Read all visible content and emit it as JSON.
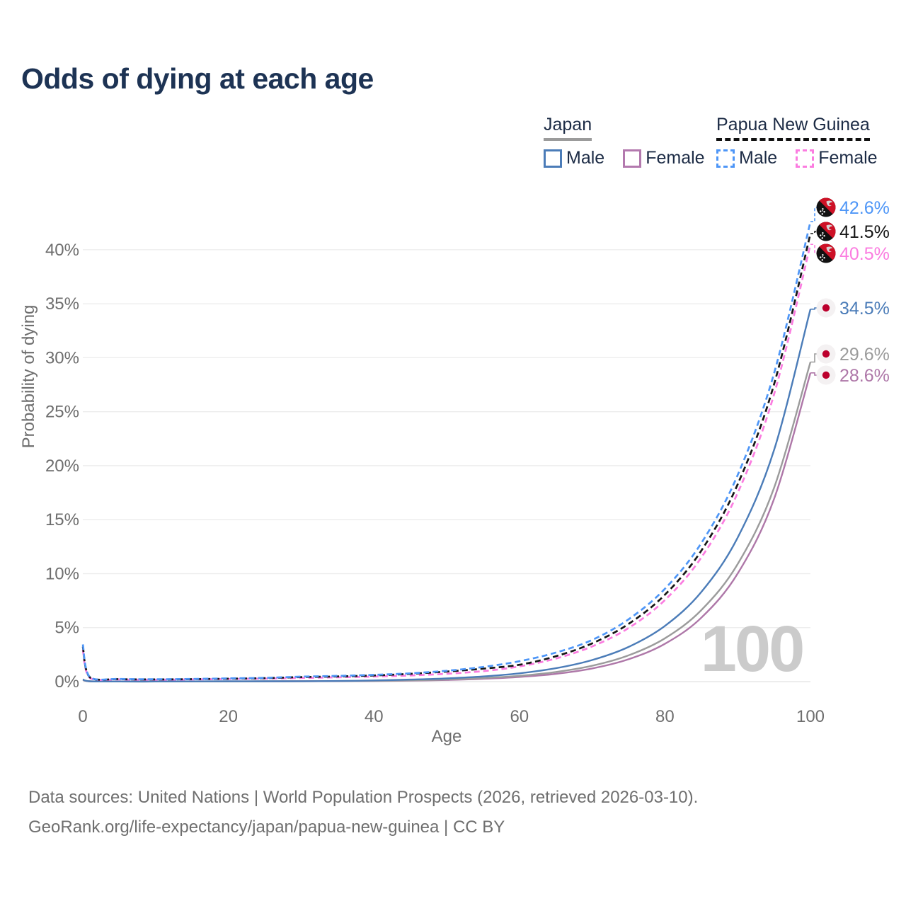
{
  "header": {
    "title": "Odds of dying at each age"
  },
  "legend": {
    "groups": [
      {
        "country": "Japan",
        "line_style": "solid",
        "underline_color": "#9b9b9b",
        "items": [
          {
            "label": "Male",
            "color": "#4b7cb8"
          },
          {
            "label": "Female",
            "color": "#b379ae"
          }
        ]
      },
      {
        "country": "Papua New Guinea",
        "line_style": "dashed",
        "underline_color": "#111111",
        "items": [
          {
            "label": "Male",
            "color": "#4e96f7"
          },
          {
            "label": "Female",
            "color": "#fb7ce0"
          }
        ]
      }
    ]
  },
  "chart_data": {
    "type": "line",
    "title": "Odds of dying at each age",
    "xlabel": "Age",
    "ylabel": "Probability of dying",
    "xlim": [
      0,
      100
    ],
    "ylim": [
      0,
      44
    ],
    "xticks": [
      "0",
      "20",
      "40",
      "60",
      "80",
      "100"
    ],
    "xtick_values": [
      0,
      20,
      40,
      60,
      80,
      100
    ],
    "yticks": [
      "0%",
      "5%",
      "10%",
      "15%",
      "20%",
      "25%",
      "30%",
      "35%",
      "40%"
    ],
    "ytick_values": [
      0,
      5,
      10,
      15,
      20,
      25,
      30,
      35,
      40
    ],
    "grid": "horizontal",
    "legend_position": "top-right",
    "watermark": "100",
    "ages": [
      0,
      1,
      5,
      10,
      15,
      20,
      25,
      30,
      35,
      40,
      45,
      50,
      55,
      60,
      65,
      70,
      75,
      80,
      85,
      90,
      95,
      100
    ],
    "series": [
      {
        "name": "Japan Female",
        "country": "Japan",
        "sex": "Female",
        "flag": "jp",
        "color": "#ae77a8",
        "dash": "solid",
        "end_label": "28.6%",
        "end_value": 28.6,
        "values": [
          0.16,
          0.02,
          0.01,
          0.01,
          0.01,
          0.02,
          0.02,
          0.03,
          0.04,
          0.05,
          0.09,
          0.15,
          0.26,
          0.43,
          0.72,
          1.22,
          2.07,
          3.5,
          5.92,
          10.01,
          16.92,
          28.6
        ]
      },
      {
        "name": "Japan Both sexes",
        "country": "Japan",
        "sex": "Both",
        "flag": "jp",
        "color": "#9b9b9b",
        "dash": "solid",
        "end_label": "29.6%",
        "end_value": 29.6,
        "values": [
          0.18,
          0.03,
          0.01,
          0.01,
          0.02,
          0.02,
          0.03,
          0.04,
          0.05,
          0.07,
          0.12,
          0.2,
          0.33,
          0.54,
          0.89,
          1.47,
          2.43,
          4.01,
          6.62,
          10.89,
          17.95,
          29.6
        ]
      },
      {
        "name": "Japan Male",
        "country": "Japan",
        "sex": "Male",
        "flag": "jp",
        "color": "#4b7cb8",
        "dash": "solid",
        "end_label": "34.5%",
        "end_value": 34.5,
        "values": [
          0.2,
          0.03,
          0.01,
          0.01,
          0.02,
          0.03,
          0.03,
          0.04,
          0.06,
          0.11,
          0.19,
          0.3,
          0.48,
          0.77,
          1.24,
          2.0,
          3.21,
          5.16,
          8.3,
          13.34,
          21.45,
          34.5
        ]
      },
      {
        "name": "Papua New Guinea Female",
        "country": "Papua New Guinea",
        "sex": "Female",
        "flag": "pg",
        "color": "#fb7ce0",
        "dash": "dashed",
        "end_label": "40.5%",
        "end_value": 40.5,
        "values": [
          2.95,
          0.33,
          0.2,
          0.18,
          0.2,
          0.24,
          0.28,
          0.34,
          0.4,
          0.47,
          0.57,
          0.73,
          0.97,
          1.41,
          2.14,
          3.26,
          4.96,
          7.55,
          11.49,
          17.48,
          26.61,
          40.5
        ]
      },
      {
        "name": "Papua New Guinea Both sexes",
        "country": "Papua New Guinea",
        "sex": "Both",
        "flag": "pg",
        "color": "#161616",
        "dash": "dashed",
        "end_label": "41.5%",
        "end_value": 41.5,
        "values": [
          3.25,
          0.38,
          0.23,
          0.2,
          0.23,
          0.27,
          0.32,
          0.42,
          0.48,
          0.57,
          0.72,
          0.93,
          1.2,
          1.56,
          2.35,
          3.54,
          5.34,
          8.05,
          12.13,
          18.28,
          27.54,
          41.5
        ]
      },
      {
        "name": "Papua New Guinea Male",
        "country": "Papua New Guinea",
        "sex": "Male",
        "flag": "pg",
        "color": "#4e96f7",
        "dash": "dashed",
        "end_label": "42.6%",
        "end_value": 42.6,
        "values": [
          3.45,
          0.4,
          0.25,
          0.22,
          0.25,
          0.3,
          0.35,
          0.46,
          0.53,
          0.63,
          0.77,
          1.0,
          1.36,
          1.89,
          2.69,
          3.86,
          5.77,
          8.6,
          12.83,
          19.14,
          28.56,
          42.6
        ]
      }
    ]
  },
  "footer": {
    "line1": "Data sources: United Nations | World Population Prospects (2026, retrieved 2026-03-10).",
    "line2": "GeoRank.org/life-expectancy/japan/papua-new-guinea | CC BY"
  },
  "colors": {
    "title": "#1d3354",
    "axis_text": "#6e6e6e",
    "gridline": "#ececec",
    "zero_line": "#e2e2e2",
    "watermark": "#cbcbcb",
    "japan_flag_red": "#bc002d",
    "png_flag_red": "#ce1126",
    "png_flag_black": "#111111"
  }
}
